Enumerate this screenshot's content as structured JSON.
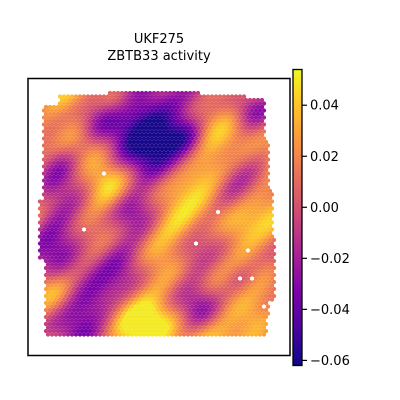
{
  "chart_data": {
    "type": "heatmap",
    "title": "UKF275",
    "subtitle": "ZBTB33 activity",
    "xlabel": "",
    "ylabel": "",
    "plot_kind": "spatial transcriptomics spot map (hexagonal spots)",
    "colormap": "plasma",
    "colorbar": {
      "min": -0.062,
      "max": 0.054,
      "ticks": [
        0.04,
        0.02,
        0.0,
        -0.02,
        -0.04,
        -0.06
      ],
      "tick_labels": [
        "0.04",
        "0.02",
        "0.00",
        "−0.02",
        "−0.04",
        "−0.06"
      ],
      "placement": "right"
    },
    "spot_value_range": [
      -0.06,
      0.05
    ],
    "low_value_regions": [
      "top-center",
      "left-middle",
      "center",
      "lower-left",
      "bottom-left"
    ],
    "high_value_regions": [
      "upper-left",
      "center-right",
      "bottom-center",
      "lower-right"
    ],
    "grid": false,
    "axes_ticks_visible": false,
    "colors": {
      "frame": "#000000",
      "colormap_low": "#0d0887",
      "colormap_mid": "#cc4778",
      "colormap_high": "#f0f921",
      "background": "#ffffff"
    }
  }
}
